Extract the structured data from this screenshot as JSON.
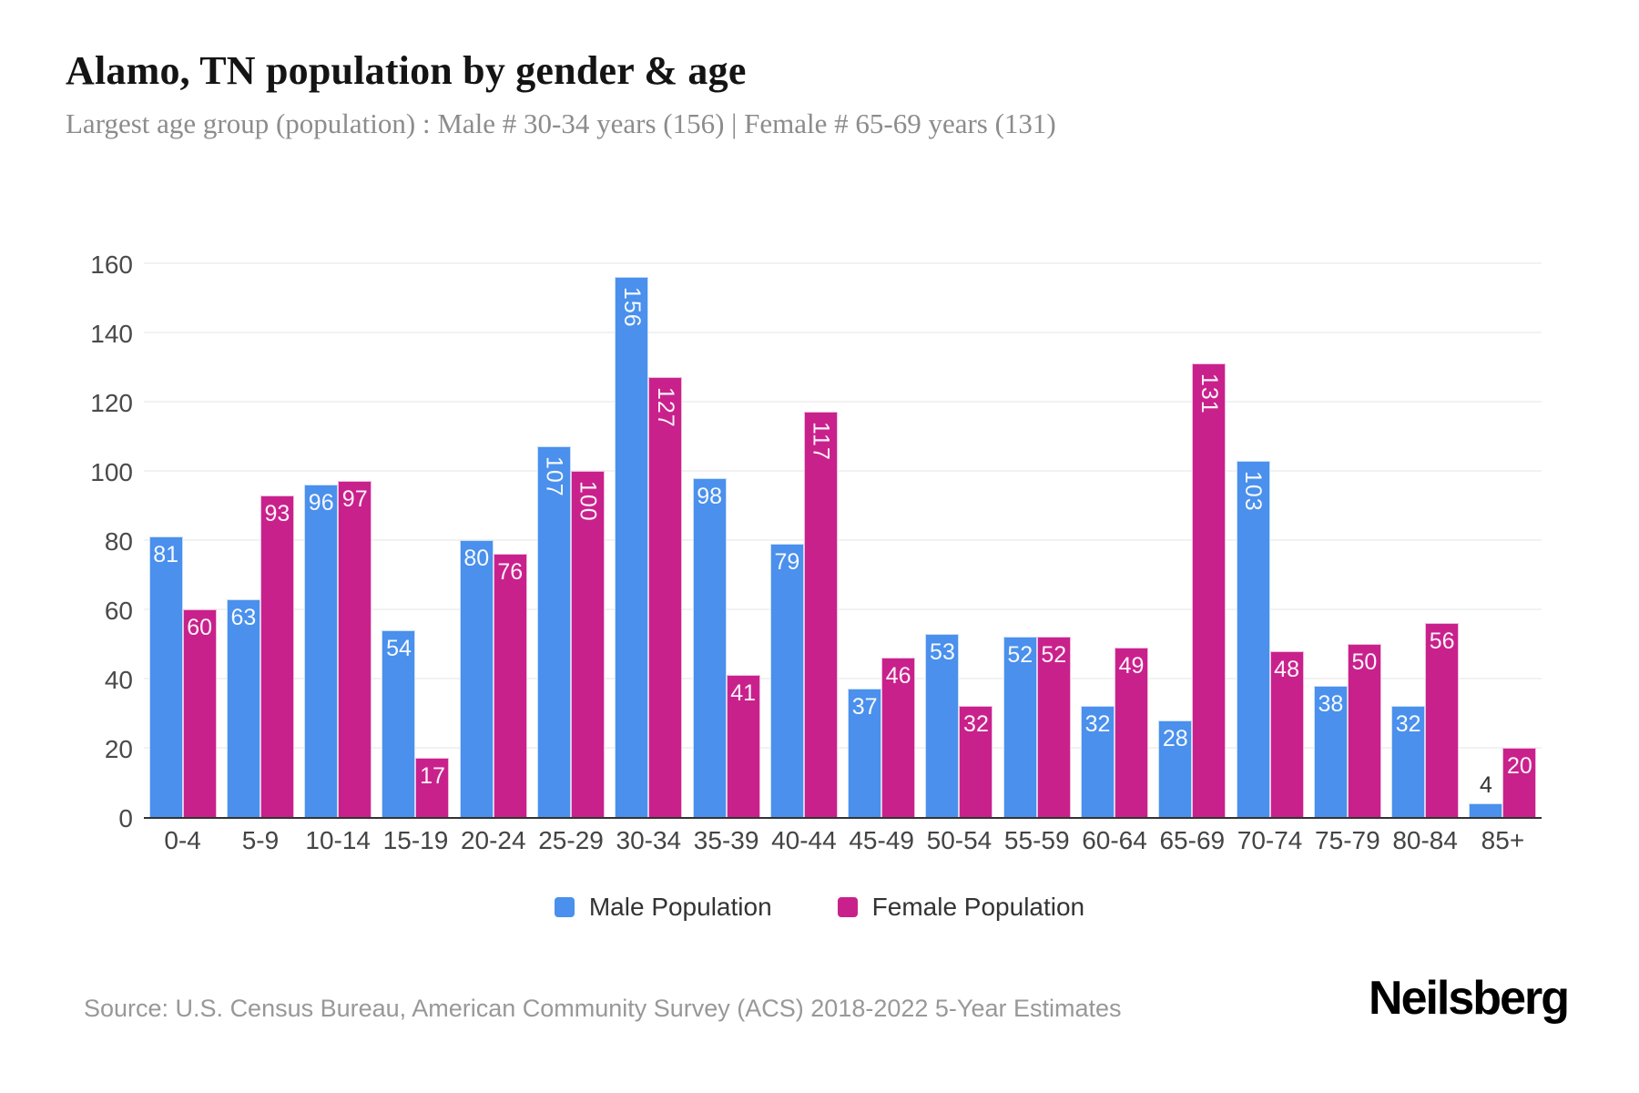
{
  "header": {
    "title": "Alamo, TN population by gender & age",
    "subtitle": "Largest age group (population) : Male # 30-34 years (156) | Female # 65-69 years (131)"
  },
  "chart_data": {
    "type": "bar",
    "title": "Alamo, TN population by gender & age",
    "categories": [
      "0-4",
      "5-9",
      "10-14",
      "15-19",
      "20-24",
      "25-29",
      "30-34",
      "35-39",
      "40-44",
      "45-49",
      "50-54",
      "55-59",
      "60-64",
      "65-69",
      "70-74",
      "75-79",
      "80-84",
      "85+"
    ],
    "series": [
      {
        "name": "Male Population",
        "color": "#4A90EC",
        "values": [
          81,
          63,
          96,
          54,
          80,
          107,
          156,
          98,
          79,
          37,
          53,
          52,
          32,
          28,
          103,
          38,
          32,
          4
        ]
      },
      {
        "name": "Female Population",
        "color": "#C9218C",
        "values": [
          60,
          93,
          97,
          17,
          76,
          100,
          127,
          41,
          117,
          46,
          32,
          52,
          49,
          131,
          48,
          50,
          56,
          20
        ]
      }
    ],
    "xlabel": "",
    "ylabel": "",
    "ylim": [
      0,
      160
    ],
    "yticks": [
      0,
      20,
      40,
      60,
      80,
      100,
      120,
      140,
      160
    ],
    "grid": true,
    "legend_position": "bottom"
  },
  "footer": {
    "source": "Source: U.S. Census Bureau, American Community Survey (ACS) 2018-2022 5-Year Estimates",
    "brand": "Neilsberg"
  }
}
